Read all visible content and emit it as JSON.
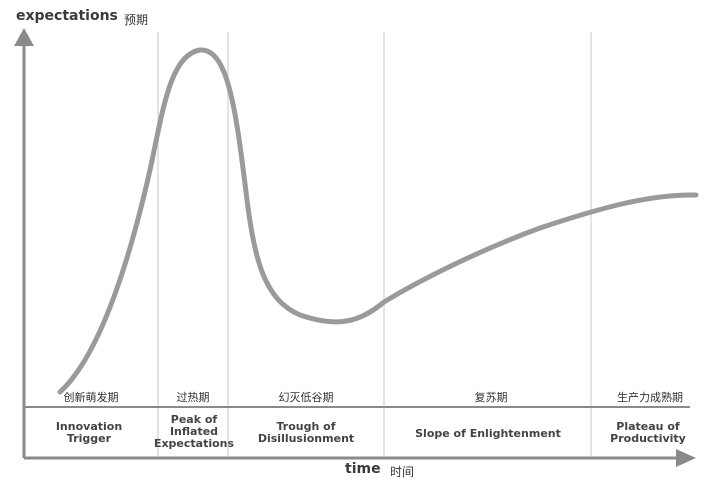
{
  "axes": {
    "y_label": "expectations",
    "y_label_cn": "预期",
    "x_label": "time",
    "x_label_cn": "时间"
  },
  "phases": [
    {
      "name": "Innovation\nTrigger",
      "name_cn": "创新萌发期"
    },
    {
      "name": "Peak of\nInflated\nExpectations",
      "name_cn": "过热期"
    },
    {
      "name": "Trough of\nDisillusionment",
      "name_cn": "幻灭低谷期"
    },
    {
      "name": "Slope of Enlightenment",
      "name_cn": "复苏期"
    },
    {
      "name": "Plateau of\nProductivity",
      "name_cn": "生产力成熟期"
    }
  ],
  "colors": {
    "curve": "#9a9a9a",
    "axis": "#8a8a8a",
    "divider": "#dcdcdc"
  }
}
